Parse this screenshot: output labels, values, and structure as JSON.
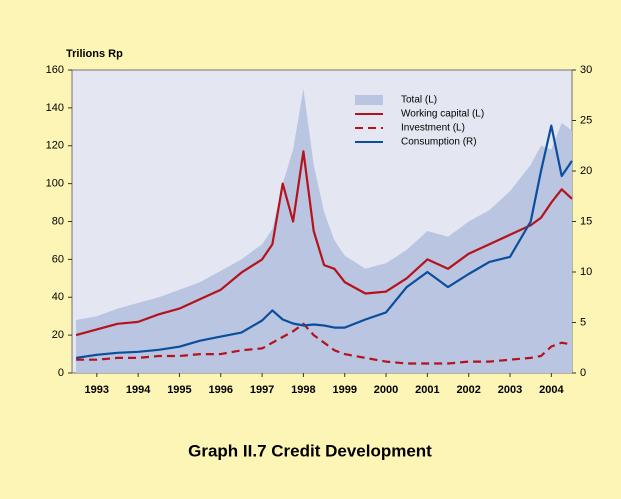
{
  "chart_data": {
    "type": "line",
    "title": "Graph II.7 Credit Development",
    "y_label": "Trilions Rp",
    "x": [
      1992.5,
      1993,
      1993.5,
      1994,
      1994.5,
      1995,
      1995.5,
      1996,
      1996.5,
      1997,
      1997.25,
      1997.5,
      1997.75,
      1998,
      1998.25,
      1998.5,
      1998.75,
      1999,
      1999.5,
      2000,
      2000.5,
      2001,
      2001.5,
      2002,
      2002.5,
      2003,
      2003.5,
      2003.75,
      2004,
      2004.25,
      2004.5
    ],
    "xlim": [
      1992.4,
      2004.5
    ],
    "xticks": [
      1993,
      1994,
      1995,
      1996,
      1997,
      1998,
      1999,
      2000,
      2001,
      2002,
      2003,
      2004
    ],
    "ylim": [
      0,
      160
    ],
    "yticks": [
      0,
      20,
      40,
      60,
      80,
      100,
      120,
      140,
      160
    ],
    "y2lim": [
      0,
      30
    ],
    "y2ticks": [
      0,
      5,
      10,
      15,
      20,
      25,
      30
    ],
    "series": [
      {
        "name": "Total (L)",
        "color": "#b9c5e1",
        "style": "area",
        "values": [
          28,
          30,
          34,
          37,
          40,
          44,
          48,
          54,
          60,
          68,
          76,
          100,
          118,
          150,
          110,
          85,
          70,
          62,
          55,
          58,
          65,
          75,
          72,
          80,
          86,
          96,
          110,
          120,
          118,
          132,
          128
        ]
      },
      {
        "name": "Working capital (L)",
        "color": "#b5121b",
        "style": "solid",
        "values": [
          20,
          23,
          26,
          27,
          31,
          34,
          39,
          44,
          53,
          60,
          68,
          100,
          80,
          117,
          75,
          57,
          55,
          48,
          42,
          43,
          50,
          60,
          55,
          63,
          68,
          73,
          78,
          82,
          90,
          97,
          92
        ]
      },
      {
        "name": "Investment (L)",
        "color": "#b5121b",
        "style": "dashed",
        "values": [
          7,
          7,
          8,
          8,
          9,
          9,
          10,
          10,
          12,
          13,
          16,
          19,
          22,
          26,
          20,
          16,
          12,
          10,
          8,
          6,
          5,
          5,
          5,
          6,
          6,
          7,
          8,
          9,
          14,
          16,
          15
        ]
      },
      {
        "name": "Consumption (R)",
        "color": "#0b4f9c",
        "style": "solid",
        "axis": "y2",
        "values": [
          1.5,
          1.8,
          2.0,
          2.1,
          2.3,
          2.6,
          3.2,
          3.6,
          4.0,
          5.2,
          6.2,
          5.3,
          4.9,
          4.7,
          4.8,
          4.7,
          4.5,
          4.5,
          5.3,
          6.0,
          8.5,
          10.0,
          8.5,
          9.8,
          11.0,
          11.5,
          15.0,
          20.0,
          24.5,
          19.5,
          21.0
        ]
      }
    ],
    "legend": "upper right"
  }
}
